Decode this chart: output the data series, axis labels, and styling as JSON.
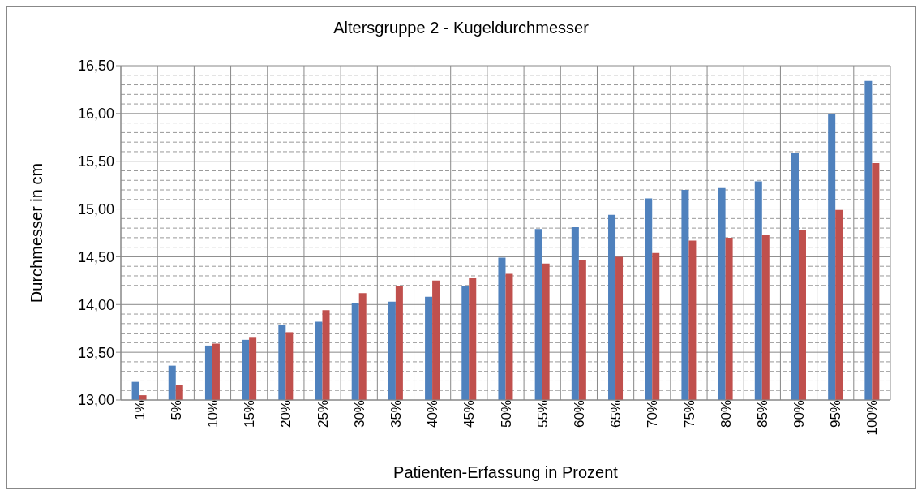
{
  "chart_data": {
    "type": "bar",
    "title": "Altersgruppe 2 - Kugeldurchmesser",
    "xlabel": "Patienten-Erfassung in Prozent",
    "ylabel": "Durchmesser in cm",
    "categories": [
      "1%",
      "5%",
      "10%",
      "15%",
      "20%",
      "25%",
      "30%",
      "35%",
      "40%",
      "45%",
      "50%",
      "55%",
      "60%",
      "65%",
      "70%",
      "75%",
      "80%",
      "85%",
      "90%",
      "95%",
      "100%"
    ],
    "series": [
      {
        "color": "#4f81bd",
        "values": [
          13.19,
          13.36,
          13.57,
          13.63,
          13.79,
          13.82,
          14.01,
          14.03,
          14.08,
          14.19,
          14.49,
          14.79,
          14.81,
          14.94,
          15.11,
          15.2,
          15.22,
          15.29,
          15.59,
          15.99,
          16.34
        ]
      },
      {
        "color": "#c0504d",
        "values": [
          13.05,
          13.16,
          13.59,
          13.66,
          13.71,
          13.94,
          14.12,
          14.19,
          14.25,
          14.28,
          14.32,
          14.43,
          14.47,
          14.5,
          14.54,
          14.67,
          14.7,
          14.73,
          14.78,
          14.99,
          15.48
        ]
      }
    ],
    "ylim": [
      13,
      16.5
    ],
    "yticks": [
      {
        "value": 13,
        "label": "13,00"
      },
      {
        "value": 13.1,
        "label": null
      },
      {
        "value": 13.2,
        "label": null
      },
      {
        "value": 13.3,
        "label": null
      },
      {
        "value": 13.4,
        "label": null
      },
      {
        "value": 13.5,
        "label": "13,50"
      },
      {
        "value": 13.6,
        "label": null
      },
      {
        "value": 13.7,
        "label": null
      },
      {
        "value": 13.8,
        "label": null
      },
      {
        "value": 13.9,
        "label": null
      },
      {
        "value": 14,
        "label": "14,00"
      },
      {
        "value": 14.1,
        "label": null
      },
      {
        "value": 14.2,
        "label": null
      },
      {
        "value": 14.3,
        "label": null
      },
      {
        "value": 14.4,
        "label": null
      },
      {
        "value": 14.5,
        "label": "14,50"
      },
      {
        "value": 14.6,
        "label": null
      },
      {
        "value": 14.7,
        "label": null
      },
      {
        "value": 14.8,
        "label": null
      },
      {
        "value": 14.9,
        "label": null
      },
      {
        "value": 15,
        "label": "15,00"
      },
      {
        "value": 15.1,
        "label": null
      },
      {
        "value": 15.2,
        "label": null
      },
      {
        "value": 15.3,
        "label": null
      },
      {
        "value": 15.4,
        "label": null
      },
      {
        "value": 15.5,
        "label": "15,50"
      },
      {
        "value": 15.6,
        "label": null
      },
      {
        "value": 15.7,
        "label": null
      },
      {
        "value": 15.8,
        "label": null
      },
      {
        "value": 15.9,
        "label": null
      },
      {
        "value": 16,
        "label": "16,00"
      },
      {
        "value": 16.1,
        "label": null
      },
      {
        "value": 16.2,
        "label": null
      },
      {
        "value": 16.3,
        "label": null
      },
      {
        "value": 16.4,
        "label": null
      },
      {
        "value": 16.5,
        "label": "16,50"
      }
    ],
    "grid": true
  }
}
